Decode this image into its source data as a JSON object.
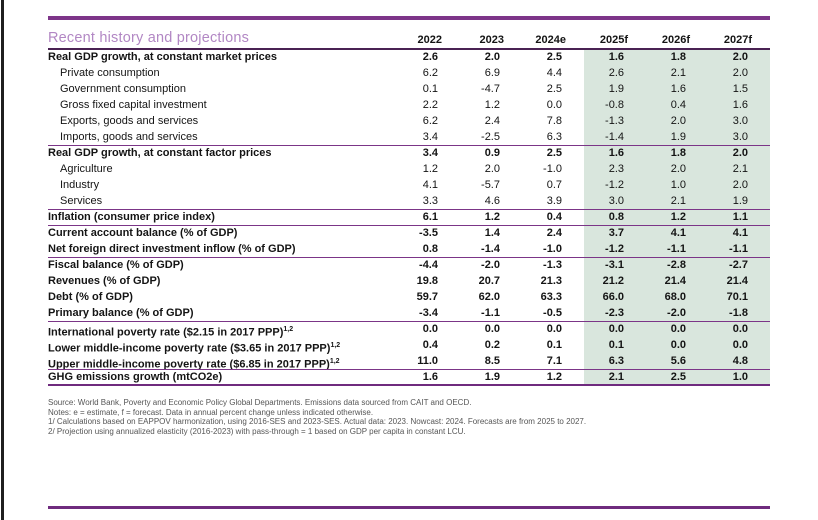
{
  "table": {
    "title": "Recent history and projections",
    "columns": [
      "2022",
      "2023",
      "2024e",
      "2025f",
      "2026f",
      "2027f"
    ],
    "shaded_columns": [
      "2025f",
      "2026f",
      "2027f"
    ],
    "rows": [
      {
        "label": "Real GDP growth, at constant market prices",
        "bold": true,
        "indent": false,
        "sup": "",
        "values": [
          "2.6",
          "2.0",
          "2.5",
          "1.6",
          "1.8",
          "2.0"
        ],
        "sep_after": false
      },
      {
        "label": "Private consumption",
        "bold": false,
        "indent": true,
        "sup": "",
        "values": [
          "6.2",
          "6.9",
          "4.4",
          "2.6",
          "2.1",
          "2.0"
        ],
        "sep_after": false
      },
      {
        "label": "Government consumption",
        "bold": false,
        "indent": true,
        "sup": "",
        "values": [
          "0.1",
          "-4.7",
          "2.5",
          "1.9",
          "1.6",
          "1.5"
        ],
        "sep_after": false
      },
      {
        "label": "Gross fixed capital investment",
        "bold": false,
        "indent": true,
        "sup": "",
        "values": [
          "2.2",
          "1.2",
          "0.0",
          "-0.8",
          "0.4",
          "1.6"
        ],
        "sep_after": false
      },
      {
        "label": "Exports, goods and services",
        "bold": false,
        "indent": true,
        "sup": "",
        "values": [
          "6.2",
          "2.4",
          "7.8",
          "-1.3",
          "2.0",
          "3.0"
        ],
        "sep_after": false
      },
      {
        "label": "Imports, goods and services",
        "bold": false,
        "indent": true,
        "sup": "",
        "values": [
          "3.4",
          "-2.5",
          "6.3",
          "-1.4",
          "1.9",
          "3.0"
        ],
        "sep_after": true
      },
      {
        "label": "Real GDP growth, at constant factor prices",
        "bold": true,
        "indent": false,
        "sup": "",
        "values": [
          "3.4",
          "0.9",
          "2.5",
          "1.6",
          "1.8",
          "2.0"
        ],
        "sep_after": false
      },
      {
        "label": "Agriculture",
        "bold": false,
        "indent": true,
        "sup": "",
        "values": [
          "1.2",
          "2.0",
          "-1.0",
          "2.3",
          "2.0",
          "2.1"
        ],
        "sep_after": false
      },
      {
        "label": "Industry",
        "bold": false,
        "indent": true,
        "sup": "",
        "values": [
          "4.1",
          "-5.7",
          "0.7",
          "-1.2",
          "1.0",
          "2.0"
        ],
        "sep_after": false
      },
      {
        "label": "Services",
        "bold": false,
        "indent": true,
        "sup": "",
        "values": [
          "3.3",
          "4.6",
          "3.9",
          "3.0",
          "2.1",
          "1.9"
        ],
        "sep_after": true
      },
      {
        "label": "Inflation (consumer price index)",
        "bold": true,
        "indent": false,
        "sup": "",
        "values": [
          "6.1",
          "1.2",
          "0.4",
          "0.8",
          "1.2",
          "1.1"
        ],
        "sep_after": true
      },
      {
        "label": "Current account balance (% of GDP)",
        "bold": true,
        "indent": false,
        "sup": "",
        "values": [
          "-3.5",
          "1.4",
          "2.4",
          "3.7",
          "4.1",
          "4.1"
        ],
        "sep_after": false
      },
      {
        "label": "Net foreign direct investment inflow (% of GDP)",
        "bold": true,
        "indent": false,
        "sup": "",
        "values": [
          "0.8",
          "-1.4",
          "-1.0",
          "-1.2",
          "-1.1",
          "-1.1"
        ],
        "sep_after": true
      },
      {
        "label": "Fiscal balance (% of GDP)",
        "bold": true,
        "indent": false,
        "sup": "",
        "values": [
          "-4.4",
          "-2.0",
          "-1.3",
          "-3.1",
          "-2.8",
          "-2.7"
        ],
        "sep_after": false
      },
      {
        "label": "Revenues (% of GDP)",
        "bold": true,
        "indent": false,
        "sup": "",
        "values": [
          "19.8",
          "20.7",
          "21.3",
          "21.2",
          "21.4",
          "21.4"
        ],
        "sep_after": false
      },
      {
        "label": "Debt (% of GDP)",
        "bold": true,
        "indent": false,
        "sup": "",
        "values": [
          "59.7",
          "62.0",
          "63.3",
          "66.0",
          "68.0",
          "70.1"
        ],
        "sep_after": false
      },
      {
        "label": "Primary balance (% of GDP)",
        "bold": true,
        "indent": false,
        "sup": "",
        "values": [
          "-3.4",
          "-1.1",
          "-0.5",
          "-2.3",
          "-2.0",
          "-1.8"
        ],
        "sep_after": true
      },
      {
        "label": "International poverty rate ($2.15 in 2017 PPP)",
        "bold": true,
        "indent": false,
        "sup": "1,2",
        "values": [
          "0.0",
          "0.0",
          "0.0",
          "0.0",
          "0.0",
          "0.0"
        ],
        "sep_after": false
      },
      {
        "label": "Lower middle-income poverty rate ($3.65 in 2017 PPP)",
        "bold": true,
        "indent": false,
        "sup": "1,2",
        "values": [
          "0.4",
          "0.2",
          "0.1",
          "0.1",
          "0.0",
          "0.0"
        ],
        "sep_after": false
      },
      {
        "label": "Upper middle-income poverty rate ($6.85 in 2017 PPP)",
        "bold": true,
        "indent": false,
        "sup": "1,2",
        "values": [
          "11.0",
          "8.5",
          "7.1",
          "6.3",
          "5.6",
          "4.8"
        ],
        "sep_after": true
      },
      {
        "label": "GHG emissions growth (mtCO2e)",
        "bold": true,
        "indent": false,
        "sup": "",
        "values": [
          "1.6",
          "1.9",
          "1.2",
          "2.1",
          "2.5",
          "1.0"
        ],
        "sep_after": false
      }
    ]
  },
  "footnotes": [
    "Source: World Bank, Poverty and Economic Policy Global Departments. Emissions data sourced from CAIT and OECD.",
    "Notes: e = estimate, f = forecast. Data in annual percent change unless indicated otherwise.",
    "1/ Calculations based on EAPPOV harmonization, using 2016-SES and 2023-SES. Actual data: 2023. Nowcast: 2024. Forecasts are from 2025 to 2027.",
    "2/ Projection using annualized elasticity (2016-2023) with pass-through = 1 based on GDP per capita in constant LCU."
  ],
  "colors": {
    "accent_purple": "#7d3589",
    "header_rule": "#4a2253",
    "separator": "#7b3587",
    "bottom_rule": "#6f2b7e",
    "shade_green": "#d9e6dd",
    "title_purple": "#b287c4"
  }
}
